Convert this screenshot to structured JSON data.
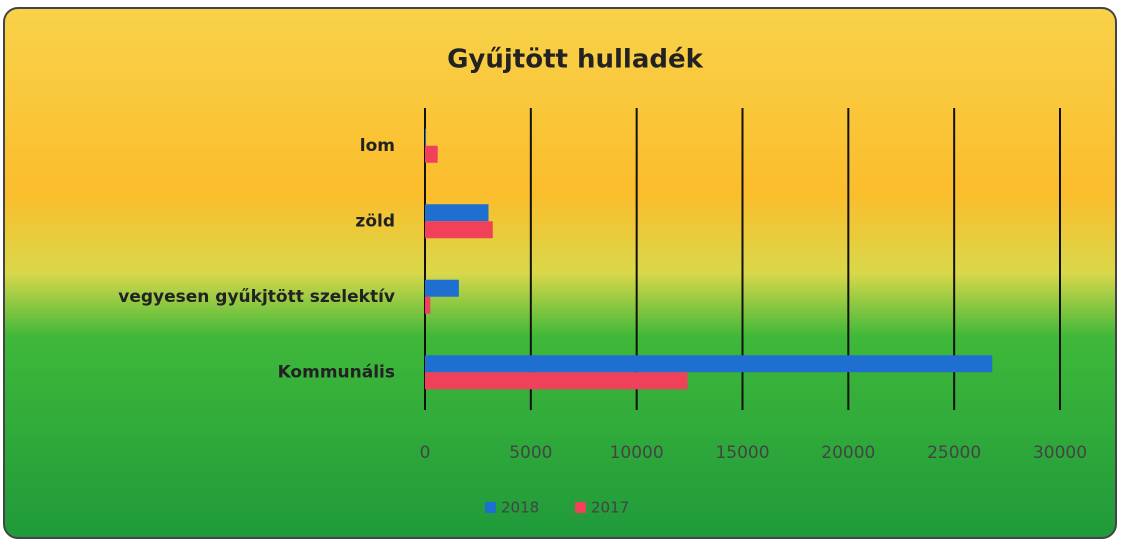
{
  "chart_data": {
    "type": "bar",
    "orientation": "horizontal",
    "title": "Gyűjtött hulladék",
    "categories": [
      "lom",
      "zöld",
      "vegyesen gyűkjtött szelektív",
      "Kommunális"
    ],
    "series": [
      {
        "name": "2018",
        "color": "#1f6fd0",
        "values": [
          50,
          3000,
          1600,
          26800
        ]
      },
      {
        "name": "2017",
        "color": "#f0405a",
        "values": [
          600,
          3200,
          250,
          12400
        ]
      }
    ],
    "xlim": [
      0,
      30000
    ],
    "xticks": [
      0,
      5000,
      10000,
      15000,
      20000,
      25000,
      30000
    ],
    "grid": true
  }
}
